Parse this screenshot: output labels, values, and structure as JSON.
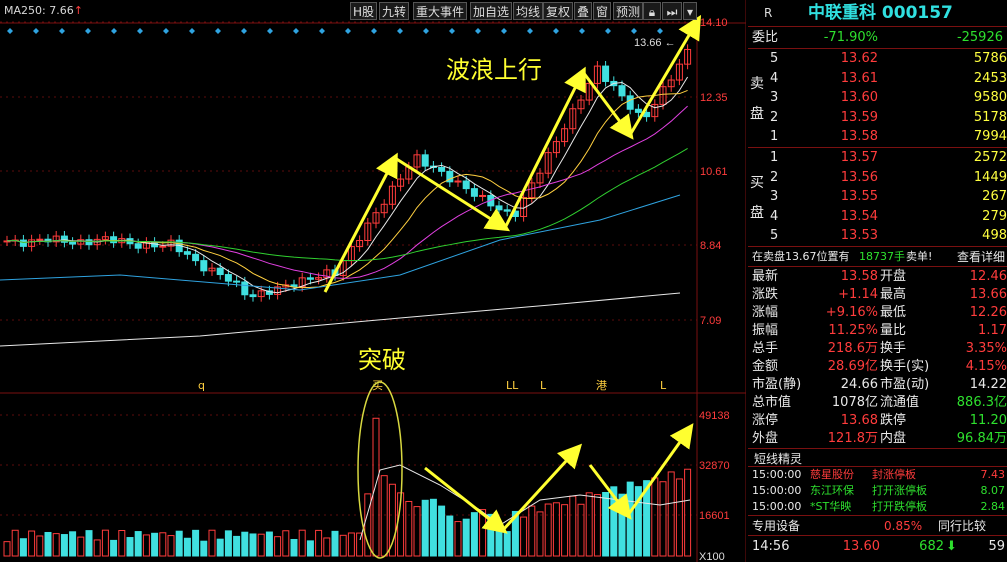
{
  "toolbar": {
    "ma_label": "MA250: 7.66",
    "buttons": [
      "H股",
      "九转",
      "重大事件",
      "加自选",
      "均线",
      "复权",
      "叠",
      "窗",
      "预测"
    ]
  },
  "annotations": {
    "wave": "波浪上行",
    "breakout": "突破",
    "high_marker": "13.66"
  },
  "price_axis": [
    "14.10",
    "12.35",
    "10.61",
    "8.84",
    "7.09"
  ],
  "volume_axis": [
    "49138",
    "32870",
    "16601",
    "X100"
  ],
  "event_markers": [
    "q",
    "买",
    "LL",
    "L",
    "港",
    "L"
  ],
  "colors": {
    "up": "#ff3c3c",
    "down": "#40e0e0",
    "annotation": "#ffff30",
    "grid": "#7a1010"
  },
  "quote": {
    "r_label": "R",
    "stock_title": "中联重科 000157",
    "weibi": {
      "label": "委比",
      "pct": "-71.90%",
      "diff": "-25926"
    },
    "sell_label": [
      "卖",
      "盘"
    ],
    "buy_label": [
      "买",
      "盘"
    ],
    "asks": [
      {
        "lvl": "5",
        "price": "13.62",
        "vol": "5786"
      },
      {
        "lvl": "4",
        "price": "13.61",
        "vol": "2453"
      },
      {
        "lvl": "3",
        "price": "13.60",
        "vol": "9580"
      },
      {
        "lvl": "2",
        "price": "13.59",
        "vol": "5178"
      },
      {
        "lvl": "1",
        "price": "13.58",
        "vol": "7994"
      }
    ],
    "bids": [
      {
        "lvl": "1",
        "price": "13.57",
        "vol": "2572"
      },
      {
        "lvl": "2",
        "price": "13.56",
        "vol": "1449"
      },
      {
        "lvl": "3",
        "price": "13.55",
        "vol": "267"
      },
      {
        "lvl": "4",
        "price": "13.54",
        "vol": "279"
      },
      {
        "lvl": "5",
        "price": "13.53",
        "vol": "498"
      }
    ],
    "notice": {
      "pre": "在卖盘13.67位置有",
      "qty": "18737手",
      "post": "卖单!",
      "link": "查看详细"
    },
    "stats": [
      {
        "l1": "最新",
        "v1": "13.58",
        "l2": "开盘",
        "v2": "12.46"
      },
      {
        "l1": "涨跌",
        "v1": "+1.14",
        "l2": "最高",
        "v2": "13.66"
      },
      {
        "l1": "涨幅",
        "v1": "+9.16%",
        "l2": "最低",
        "v2": "12.26"
      },
      {
        "l1": "振幅",
        "v1": "11.25%",
        "l2": "量比",
        "v2": "1.17"
      },
      {
        "l1": "总手",
        "v1": "218.6万",
        "l2": "换手",
        "v2": "3.35%"
      },
      {
        "l1": "金额",
        "v1": "28.69亿",
        "l2": "换手(实)",
        "v2": "4.15%"
      },
      {
        "l1": "市盈(静)",
        "v1": "24.66",
        "l2": "市盈(动)",
        "v2": "14.22"
      },
      {
        "l1": "总市值",
        "v1": "1078亿",
        "l2": "流通值",
        "v2": "886.3亿"
      },
      {
        "l1": "涨停",
        "v1": "13.68",
        "l2": "跌停",
        "v2": "11.20"
      },
      {
        "l1": "外盘",
        "v1": "121.8万",
        "l2": "内盘",
        "v2": "96.84万"
      }
    ],
    "short_title": "短线精灵",
    "short_items": [
      {
        "time": "15:00:00",
        "name": "慈星股份",
        "event": "封涨停板",
        "val": "7.43"
      },
      {
        "time": "15:00:00",
        "name": "东江环保",
        "event": "打开涨停板",
        "val": "8.07"
      },
      {
        "time": "15:00:00",
        "name": "*ST华映",
        "event": "打开跌停板",
        "val": "2.84"
      }
    ],
    "footer": {
      "tab1": "专用设备",
      "pct": "0.85%",
      "tab2": "同行比较"
    },
    "tick": {
      "time": "14:56",
      "price": "13.60",
      "vol": "682",
      "num": "59"
    }
  }
}
